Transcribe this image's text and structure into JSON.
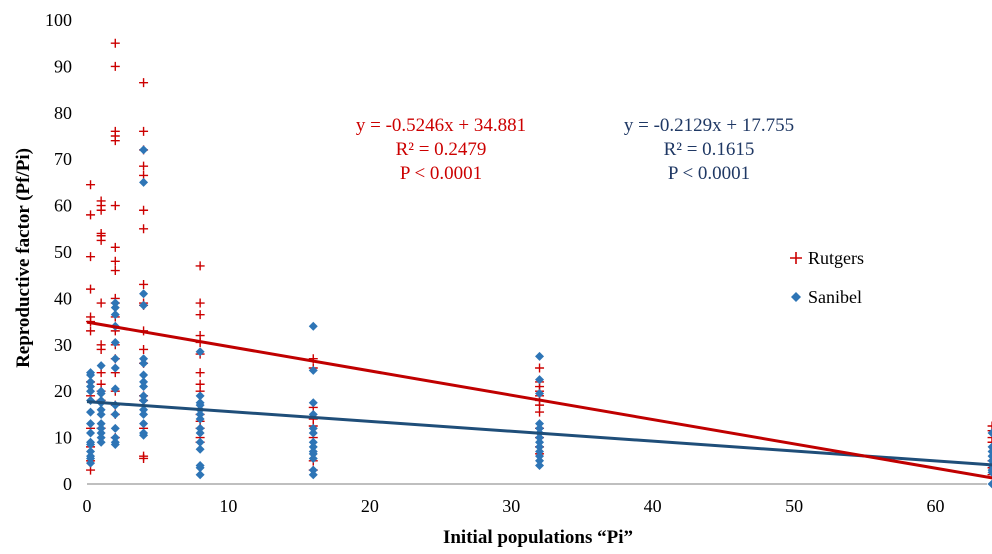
{
  "chart_data": {
    "type": "scatter",
    "xlabel": "Initial populations “Pi”",
    "ylabel": "Reproductive factor (Pf/Pi)",
    "xlim": [
      0,
      64
    ],
    "ylim": [
      0,
      100
    ],
    "x_ticks": [
      0,
      10,
      20,
      30,
      40,
      50,
      60
    ],
    "y_ticks": [
      0,
      10,
      20,
      30,
      40,
      50,
      60,
      70,
      80,
      90,
      100
    ],
    "grid": false,
    "legend_position": "right",
    "series": [
      {
        "name": "Rutgers",
        "marker": "plus",
        "color": "#cc0000",
        "points": [
          [
            0.25,
            64.5
          ],
          [
            0.25,
            58
          ],
          [
            0.25,
            49
          ],
          [
            0.25,
            42
          ],
          [
            0.25,
            36
          ],
          [
            0.25,
            35
          ],
          [
            0.25,
            33
          ],
          [
            0.25,
            22
          ],
          [
            0.25,
            19
          ],
          [
            0.25,
            12
          ],
          [
            0.25,
            8
          ],
          [
            0.25,
            5
          ],
          [
            0.25,
            3
          ],
          [
            1,
            61
          ],
          [
            1,
            60
          ],
          [
            1,
            59
          ],
          [
            1,
            54
          ],
          [
            1,
            53.5
          ],
          [
            1,
            52.5
          ],
          [
            1,
            39
          ],
          [
            1,
            30
          ],
          [
            1,
            29
          ],
          [
            1,
            24
          ],
          [
            1,
            21.5
          ],
          [
            1,
            20
          ],
          [
            1,
            18
          ],
          [
            1,
            12
          ],
          [
            2,
            95
          ],
          [
            2,
            90
          ],
          [
            2,
            76
          ],
          [
            2,
            75
          ],
          [
            2,
            74
          ],
          [
            2,
            60
          ],
          [
            2,
            51
          ],
          [
            2,
            48
          ],
          [
            2,
            46
          ],
          [
            2,
            40
          ],
          [
            2,
            39
          ],
          [
            2,
            36
          ],
          [
            2,
            33
          ],
          [
            2,
            30
          ],
          [
            2,
            27
          ],
          [
            2,
            24
          ],
          [
            2,
            20
          ],
          [
            2,
            17
          ],
          [
            2,
            15
          ],
          [
            2,
            10
          ],
          [
            4,
            86.5
          ],
          [
            4,
            76
          ],
          [
            4,
            72
          ],
          [
            4,
            68.5
          ],
          [
            4,
            66.5
          ],
          [
            4,
            59
          ],
          [
            4,
            55
          ],
          [
            4,
            43
          ],
          [
            4,
            39
          ],
          [
            4,
            38.5
          ],
          [
            4,
            33
          ],
          [
            4,
            29
          ],
          [
            4,
            26
          ],
          [
            4,
            19
          ],
          [
            4,
            18
          ],
          [
            4,
            12
          ],
          [
            4,
            6
          ],
          [
            4,
            5.5
          ],
          [
            8,
            47
          ],
          [
            8,
            39
          ],
          [
            8,
            36.5
          ],
          [
            8,
            32
          ],
          [
            8,
            30.5
          ],
          [
            8,
            28
          ],
          [
            8,
            24
          ],
          [
            8,
            21.5
          ],
          [
            8,
            20
          ],
          [
            8,
            16
          ],
          [
            8,
            15
          ],
          [
            8,
            13.5
          ],
          [
            8,
            12
          ],
          [
            8,
            10
          ],
          [
            8,
            9
          ],
          [
            16,
            27
          ],
          [
            16,
            25
          ],
          [
            16,
            16.5
          ],
          [
            16,
            14
          ],
          [
            16,
            12.5
          ],
          [
            16,
            10
          ],
          [
            16,
            5
          ],
          [
            16,
            3
          ],
          [
            32,
            25
          ],
          [
            32,
            22
          ],
          [
            32,
            21
          ],
          [
            32,
            20
          ],
          [
            32,
            19
          ],
          [
            32,
            18
          ],
          [
            32,
            17
          ],
          [
            32,
            15.5
          ],
          [
            32,
            12
          ],
          [
            32,
            11
          ],
          [
            32,
            10
          ],
          [
            32,
            8
          ],
          [
            32,
            6.5
          ],
          [
            64,
            12.5
          ],
          [
            64,
            11.5
          ],
          [
            64,
            10
          ],
          [
            64,
            9
          ],
          [
            64,
            5
          ],
          [
            64,
            3.5
          ],
          [
            64,
            2
          ]
        ],
        "trend": {
          "slope": -0.5246,
          "intercept": 34.881,
          "r2": 0.2479,
          "p": "P < 0.0001"
        }
      },
      {
        "name": "Sanibel",
        "marker": "diamond",
        "color": "#2e75b6",
        "points": [
          [
            0.25,
            24
          ],
          [
            0.25,
            23.5
          ],
          [
            0.25,
            22
          ],
          [
            0.25,
            21
          ],
          [
            0.25,
            20
          ],
          [
            0.25,
            18
          ],
          [
            0.25,
            15.5
          ],
          [
            0.25,
            13
          ],
          [
            0.25,
            11
          ],
          [
            0.25,
            9
          ],
          [
            0.25,
            8.5
          ],
          [
            0.25,
            7
          ],
          [
            0.25,
            6
          ],
          [
            0.25,
            5.5
          ],
          [
            0.25,
            4.5
          ],
          [
            1,
            25.5
          ],
          [
            1,
            20
          ],
          [
            1,
            19.5
          ],
          [
            1,
            18
          ],
          [
            1,
            17.5
          ],
          [
            1,
            16
          ],
          [
            1,
            15
          ],
          [
            1,
            13
          ],
          [
            1,
            12
          ],
          [
            1,
            11
          ],
          [
            1,
            10
          ],
          [
            1,
            9
          ],
          [
            2,
            39
          ],
          [
            2,
            38
          ],
          [
            2,
            36.5
          ],
          [
            2,
            34
          ],
          [
            2,
            30.5
          ],
          [
            2,
            27
          ],
          [
            2,
            25
          ],
          [
            2,
            20.5
          ],
          [
            2,
            17
          ],
          [
            2,
            15
          ],
          [
            2,
            12
          ],
          [
            2,
            10
          ],
          [
            2,
            9
          ],
          [
            2,
            8.5
          ],
          [
            4,
            72
          ],
          [
            4,
            65
          ],
          [
            4,
            41
          ],
          [
            4,
            38.5
          ],
          [
            4,
            27
          ],
          [
            4,
            26
          ],
          [
            4,
            23.5
          ],
          [
            4,
            22
          ],
          [
            4,
            21
          ],
          [
            4,
            19
          ],
          [
            4,
            18
          ],
          [
            4,
            16
          ],
          [
            4,
            15
          ],
          [
            4,
            13
          ],
          [
            4,
            11
          ],
          [
            4,
            10.5
          ],
          [
            8,
            28.5
          ],
          [
            8,
            19
          ],
          [
            8,
            17.5
          ],
          [
            8,
            17
          ],
          [
            8,
            16
          ],
          [
            8,
            15
          ],
          [
            8,
            14
          ],
          [
            8,
            12
          ],
          [
            8,
            11
          ],
          [
            8,
            9
          ],
          [
            8,
            7.5
          ],
          [
            8,
            4
          ],
          [
            8,
            3.5
          ],
          [
            8,
            2
          ],
          [
            16,
            34
          ],
          [
            16,
            24.5
          ],
          [
            16,
            17.5
          ],
          [
            16,
            15
          ],
          [
            16,
            12
          ],
          [
            16,
            11
          ],
          [
            16,
            9
          ],
          [
            16,
            8
          ],
          [
            16,
            7
          ],
          [
            16,
            6.5
          ],
          [
            16,
            5.5
          ],
          [
            16,
            3
          ],
          [
            16,
            2
          ],
          [
            32,
            27.5
          ],
          [
            32,
            22.5
          ],
          [
            32,
            19.5
          ],
          [
            32,
            13
          ],
          [
            32,
            12
          ],
          [
            32,
            11
          ],
          [
            32,
            10
          ],
          [
            32,
            9
          ],
          [
            32,
            8
          ],
          [
            32,
            7
          ],
          [
            32,
            6
          ],
          [
            32,
            5
          ],
          [
            32,
            4
          ],
          [
            64,
            11
          ],
          [
            64,
            8
          ],
          [
            64,
            7
          ],
          [
            64,
            6
          ],
          [
            64,
            5
          ],
          [
            64,
            4
          ],
          [
            64,
            3
          ],
          [
            64,
            2.5
          ],
          [
            64,
            0
          ]
        ],
        "trend": {
          "slope": -0.2129,
          "intercept": 17.755,
          "r2": 0.1615,
          "p": "P < 0.0001"
        }
      }
    ],
    "annotations": [
      {
        "series": "Rutgers",
        "lines": [
          "y = -0.5246x + 34.881",
          "R² = 0.2479",
          "P < 0.0001"
        ],
        "color": "#cc0000"
      },
      {
        "series": "Sanibel",
        "lines": [
          "y = -0.2129x + 17.755",
          "R² = 0.1615",
          "P < 0.0001"
        ],
        "color": "#1f3864"
      }
    ],
    "trend_colors": {
      "Rutgers": "#c00000",
      "Sanibel": "#1f4e79"
    }
  }
}
